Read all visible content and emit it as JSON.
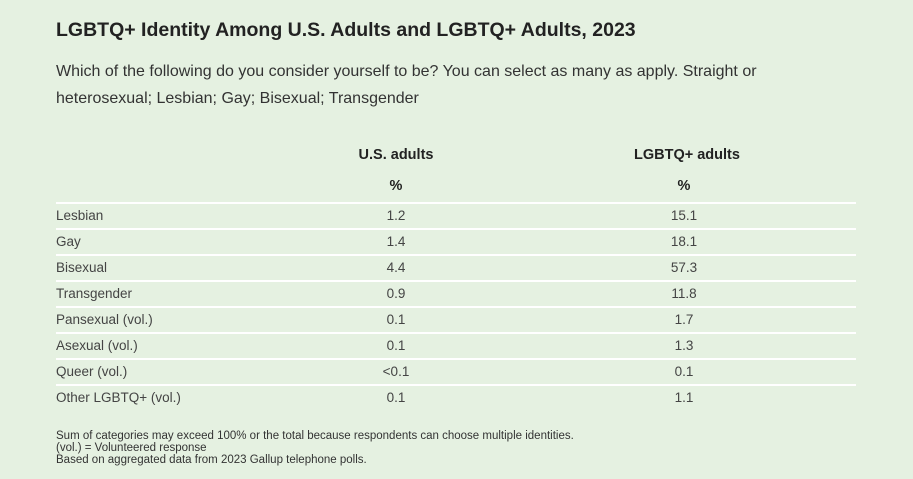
{
  "title": "LGBTQ+ Identity Among U.S. Adults and LGBTQ+ Adults, 2023",
  "subtitle": "Which of the following do you consider yourself to be? You can select as many as apply. Straight or heterosexual; Lesbian; Gay; Bisexual; Transgender",
  "chart_data": {
    "type": "table",
    "columns": [
      {
        "name": "U.S. adults",
        "unit": "%"
      },
      {
        "name": "LGBTQ+ adults",
        "unit": "%"
      }
    ],
    "rows": [
      {
        "label": "Lesbian",
        "values": [
          "1.2",
          "15.1"
        ]
      },
      {
        "label": "Gay",
        "values": [
          "1.4",
          "18.1"
        ]
      },
      {
        "label": "Bisexual",
        "values": [
          "4.4",
          "57.3"
        ]
      },
      {
        "label": "Transgender",
        "values": [
          "0.9",
          "11.8"
        ]
      },
      {
        "label": "Pansexual (vol.)",
        "values": [
          "0.1",
          "1.7"
        ]
      },
      {
        "label": "Asexual (vol.)",
        "values": [
          "0.1",
          "1.3"
        ]
      },
      {
        "label": "Queer (vol.)",
        "values": [
          "<0.1",
          "0.1"
        ]
      },
      {
        "label": "Other LGBTQ+ (vol.)",
        "values": [
          "0.1",
          "1.1"
        ]
      }
    ]
  },
  "notes": [
    "Sum of categories may exceed 100% or the total because respondents can choose multiple identities.",
    "(vol.) = Volunteered response",
    "Based on aggregated data from 2023 Gallup telephone polls."
  ],
  "colors": {
    "background": "#e5f1e1",
    "row_divider": "#ffffff",
    "text": "#333333"
  }
}
